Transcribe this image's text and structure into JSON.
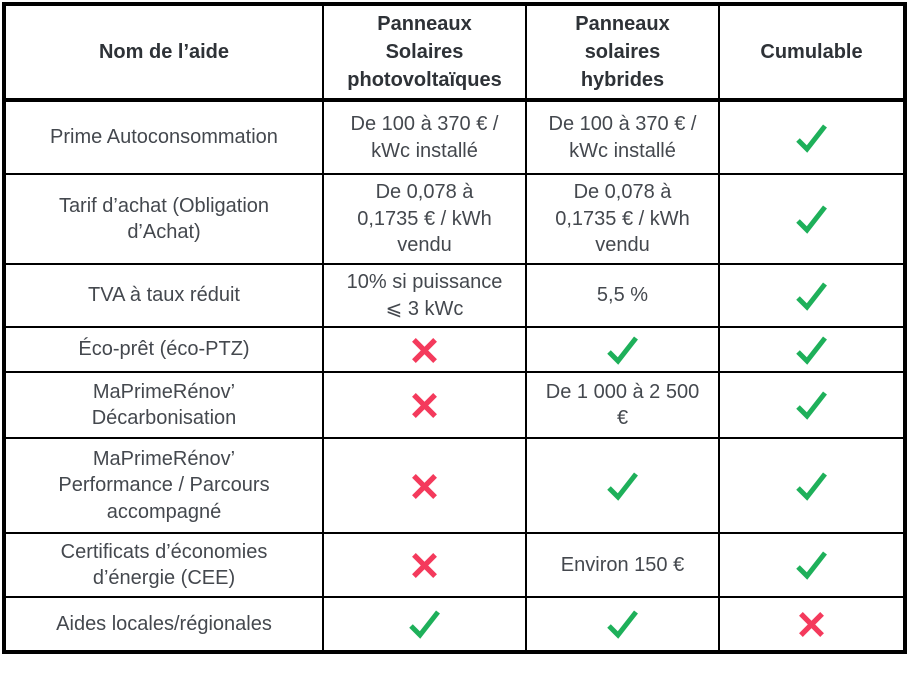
{
  "table": {
    "headers": [
      "Nom de l’aide",
      "Panneaux\nSolaires\nphotovoltaïques",
      "Panneaux\nsolaires\nhybrides",
      "Cumulable"
    ],
    "rows": [
      {
        "aid": "Prime Autoconsommation",
        "pv": {
          "type": "text",
          "value": "De 100 à 370 € /\nkWc installé"
        },
        "hybrid": {
          "type": "text",
          "value": "De 100 à 370 € /\nkWc installé"
        },
        "cumulable": {
          "type": "check"
        }
      },
      {
        "aid": "Tarif d’achat (Obligation\nd’Achat)",
        "pv": {
          "type": "text",
          "value": "De 0,078 à\n0,1735 € / kWh\nvendu"
        },
        "hybrid": {
          "type": "text",
          "value": "De 0,078 à\n0,1735 € / kWh\nvendu"
        },
        "cumulable": {
          "type": "check"
        }
      },
      {
        "aid": "TVA à taux réduit",
        "pv": {
          "type": "text",
          "value": "10% si puissance\n⩽ 3 kWc"
        },
        "hybrid": {
          "type": "text",
          "value": "5,5 %"
        },
        "cumulable": {
          "type": "check"
        }
      },
      {
        "aid": "Éco-prêt (éco-PTZ)",
        "pv": {
          "type": "cross"
        },
        "hybrid": {
          "type": "check"
        },
        "cumulable": {
          "type": "check"
        }
      },
      {
        "aid": "MaPrimeRénov’\nDécarbonisation",
        "pv": {
          "type": "cross"
        },
        "hybrid": {
          "type": "text",
          "value": "De 1 000 à 2 500\n€"
        },
        "cumulable": {
          "type": "check"
        }
      },
      {
        "aid": "MaPrimeRénov’\nPerformance / Parcours\naccompagné",
        "pv": {
          "type": "cross"
        },
        "hybrid": {
          "type": "check"
        },
        "cumulable": {
          "type": "check"
        }
      },
      {
        "aid": "Certificats d’économies\nd’énergie (CEE)",
        "pv": {
          "type": "cross"
        },
        "hybrid": {
          "type": "text",
          "value": "Environ 150 €"
        },
        "cumulable": {
          "type": "check"
        }
      },
      {
        "aid": "Aides locales/régionales",
        "pv": {
          "type": "check"
        },
        "hybrid": {
          "type": "check"
        },
        "cumulable": {
          "type": "cross"
        }
      }
    ]
  },
  "icons": {
    "check": "check-icon",
    "cross": "cross-icon"
  },
  "colors": {
    "check_green": "#1eb05a",
    "cross_pink": "#f43a5c",
    "border_black": "#000000",
    "header_text": "#2e3237",
    "body_text": "#44484e"
  }
}
